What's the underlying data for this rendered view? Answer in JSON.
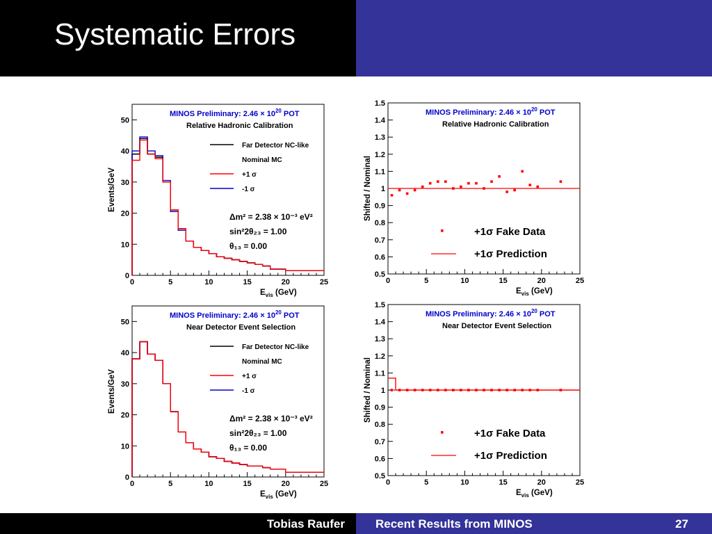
{
  "slide": {
    "title": "Systematic Errors",
    "author": "Tobias Raufer",
    "talk_title": "Recent Results from MINOS",
    "page_number": "27"
  },
  "colors": {
    "black_bar": "#000000",
    "accent": "#333399",
    "red": "#ff0000",
    "blue": "#0000cc",
    "header_blue": "#0000cc"
  },
  "chart_data": [
    {
      "type": "line",
      "header": "MINOS Preliminary:  2.46 × 10",
      "header_exp": "20",
      "header_suffix": " POT",
      "subtitle": "Relative Hadronic Calibration",
      "xlabel": "E",
      "xlabel_sub": "vis",
      "xlabel_suffix": " (GeV)",
      "ylabel": "Events/GeV",
      "xlim": [
        0,
        25
      ],
      "ylim": [
        0,
        55
      ],
      "xticks": [
        0,
        5,
        10,
        15,
        20,
        25
      ],
      "yticks": [
        0,
        10,
        20,
        30,
        40,
        50
      ],
      "bin_edges": [
        0,
        1,
        2,
        3,
        4,
        5,
        6,
        7,
        8,
        9,
        10,
        11,
        12,
        13,
        14,
        15,
        16,
        17,
        18,
        20,
        25
      ],
      "series": [
        {
          "name": "Far Detector NC-like",
          "color": "#000000",
          "values": [
            39,
            44,
            39,
            38,
            30,
            21,
            15,
            11,
            9,
            8,
            7,
            6,
            5.5,
            5,
            4.5,
            4,
            3.5,
            3,
            2,
            1.5
          ]
        },
        {
          "name": "Nominal MC",
          "color": "#000000",
          "values": [
            39,
            44,
            39,
            38,
            30,
            21,
            15,
            11,
            9,
            8,
            7,
            6,
            5.5,
            5,
            4.5,
            4,
            3.5,
            3,
            2,
            1.5
          ]
        },
        {
          "name": "+1 σ",
          "color": "#ff0000",
          "values": [
            37,
            43.5,
            39,
            37.5,
            30,
            21,
            15,
            11,
            9,
            8,
            7,
            6,
            5.5,
            5,
            4.5,
            4,
            3.5,
            3,
            2,
            1.5
          ]
        },
        {
          "name": "-1 σ",
          "color": "#0000cc",
          "values": [
            40,
            44.5,
            40,
            38.5,
            30.5,
            20.5,
            14.5,
            11,
            9,
            8,
            7,
            6,
            5.5,
            5,
            4.5,
            4,
            3.5,
            3,
            2,
            1.5
          ]
        }
      ],
      "legend": [
        "Far Detector NC-like",
        "Nominal MC",
        "+1 σ",
        "-1 σ"
      ],
      "annotations": [
        "Δm² = 2.38 × 10⁻³ eV²",
        "sin²2θ₂₃ = 1.00",
        "θ₁₃ = 0.00"
      ]
    },
    {
      "type": "scatter",
      "header": "MINOS Preliminary:  2.46 × 10",
      "header_exp": "20",
      "header_suffix": " POT",
      "subtitle": "Relative Hadronic Calibration",
      "xlabel": "E",
      "xlabel_sub": "vis",
      "xlabel_suffix": " (GeV)",
      "ylabel": "Shifted / Nominal",
      "xlim": [
        0,
        25
      ],
      "ylim": [
        0.5,
        1.5
      ],
      "xticks": [
        0,
        5,
        10,
        15,
        20,
        25
      ],
      "yticks": [
        0.5,
        0.6,
        0.7,
        0.8,
        0.9,
        1,
        1.1,
        1.2,
        1.3,
        1.4,
        1.5
      ],
      "fake_data": {
        "name": "+1σ Fake Data",
        "x": [
          0.5,
          1.5,
          2.5,
          3.5,
          4.5,
          5.5,
          6.5,
          7.5,
          8.5,
          9.5,
          10.5,
          11.5,
          12.5,
          13.5,
          14.5,
          15.5,
          16.5,
          17.5,
          18.5,
          19.5,
          22.5
        ],
        "y": [
          0.96,
          0.99,
          0.97,
          0.99,
          1.01,
          1.03,
          1.04,
          1.04,
          1.0,
          1.01,
          1.03,
          1.03,
          1.0,
          1.04,
          1.07,
          0.98,
          0.99,
          1.1,
          1.02,
          1.01,
          1.04
        ]
      },
      "prediction": {
        "name": "+1σ Prediction",
        "x": [
          0,
          25
        ],
        "y": [
          1.0,
          1.0
        ]
      }
    },
    {
      "type": "line",
      "header": "MINOS Preliminary:  2.46 × 10",
      "header_exp": "20",
      "header_suffix": " POT",
      "subtitle": "Near Detector Event Selection",
      "xlabel": "E",
      "xlabel_sub": "vis",
      "xlabel_suffix": " (GeV)",
      "ylabel": "Events/GeV",
      "xlim": [
        0,
        25
      ],
      "ylim": [
        0,
        55
      ],
      "xticks": [
        0,
        5,
        10,
        15,
        20,
        25
      ],
      "yticks": [
        0,
        10,
        20,
        30,
        40,
        50
      ],
      "bin_edges": [
        0,
        1,
        2,
        3,
        4,
        5,
        6,
        7,
        8,
        9,
        10,
        11,
        12,
        13,
        14,
        15,
        16,
        17,
        18,
        20,
        25
      ],
      "series": [
        {
          "name": "Far Detector NC-like",
          "color": "#000000",
          "values": [
            38,
            43.5,
            39.5,
            37.5,
            30,
            21,
            14.5,
            11,
            9,
            8,
            6.5,
            6,
            5,
            4.5,
            4,
            3.5,
            3.5,
            3,
            2.5,
            1.5
          ]
        },
        {
          "name": "Nominal MC",
          "color": "#000000",
          "values": [
            38,
            43.5,
            39.5,
            37.5,
            30,
            21,
            14.5,
            11,
            9,
            8,
            6.5,
            6,
            5,
            4.5,
            4,
            3.5,
            3.5,
            3,
            2.5,
            1.5
          ]
        },
        {
          "name": "+1 σ",
          "color": "#ff0000",
          "values": [
            38,
            43.5,
            39.5,
            37.5,
            30,
            21,
            14.5,
            11,
            9,
            8,
            6.5,
            6,
            5,
            4.5,
            4,
            3.5,
            3.5,
            3,
            2.5,
            1.5
          ]
        },
        {
          "name": "-1 σ",
          "color": "#0000cc",
          "values": [
            38,
            43.5,
            39.5,
            37.5,
            30,
            21,
            14.5,
            11,
            9,
            8,
            6.5,
            6,
            5,
            4.5,
            4,
            3.5,
            3.5,
            3,
            2.5,
            1.5
          ]
        }
      ],
      "legend": [
        "Far Detector NC-like",
        "Nominal MC",
        "+1 σ",
        "-1 σ"
      ],
      "annotations": [
        "Δm² = 2.38 × 10⁻³ eV²",
        "sin²2θ₂₃ = 1.00",
        "θ₁₃ = 0.00"
      ]
    },
    {
      "type": "scatter",
      "header": "MINOS Preliminary:  2.46 × 10",
      "header_exp": "20",
      "header_suffix": " POT",
      "subtitle": "Near Detector Event Selection",
      "xlabel": "E",
      "xlabel_sub": "vis",
      "xlabel_suffix": " (GeV)",
      "ylabel": "Shifted / Nominal",
      "xlim": [
        0,
        25
      ],
      "ylim": [
        0.5,
        1.5
      ],
      "xticks": [
        0,
        5,
        10,
        15,
        20,
        25
      ],
      "yticks": [
        0.5,
        0.6,
        0.7,
        0.8,
        0.9,
        1,
        1.1,
        1.2,
        1.3,
        1.4,
        1.5
      ],
      "fake_data": {
        "name": "+1σ Fake Data",
        "x": [
          0.5,
          1.5,
          2.5,
          3.5,
          4.5,
          5.5,
          6.5,
          7.5,
          8.5,
          9.5,
          10.5,
          11.5,
          12.5,
          13.5,
          14.5,
          15.5,
          16.5,
          17.5,
          18.5,
          19.5,
          22.5
        ],
        "y": [
          1.0,
          1.0,
          1.0,
          1.0,
          1.0,
          1.0,
          1.0,
          1.0,
          1.0,
          1.0,
          1.0,
          1.0,
          1.0,
          1.0,
          1.0,
          1.0,
          1.0,
          1.0,
          1.0,
          1.0,
          1.0
        ]
      },
      "prediction": {
        "name": "+1σ Prediction",
        "bin_edges": [
          0,
          1,
          25
        ],
        "values": [
          1.07,
          1.0
        ]
      }
    }
  ]
}
